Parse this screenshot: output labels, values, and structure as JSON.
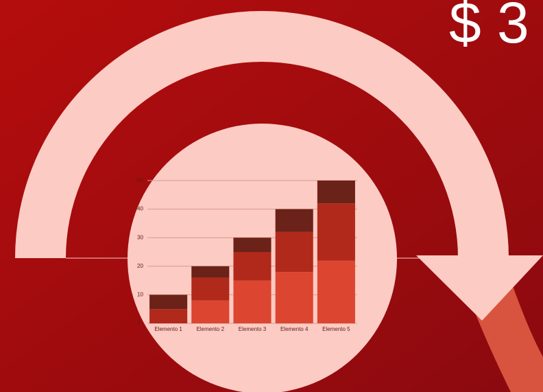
{
  "headline": "$ 3",
  "chart_data": {
    "type": "bar",
    "stacked": true,
    "categories": [
      "Elemento 1",
      "Elemento 2",
      "Elemento 3",
      "Elemento 4",
      "Elemento 5"
    ],
    "series": [
      {
        "color": "#dc4530",
        "values": [
          0,
          8,
          15,
          18,
          22
        ]
      },
      {
        "color": "#b0291b",
        "values": [
          5,
          8,
          10,
          14,
          20
        ]
      },
      {
        "color": "#6b2218",
        "values": [
          5,
          4,
          5,
          8,
          8
        ]
      }
    ],
    "ylim": [
      0,
      50
    ],
    "yticks": [
      0,
      10,
      20,
      30,
      40,
      50
    ],
    "grid": true
  }
}
